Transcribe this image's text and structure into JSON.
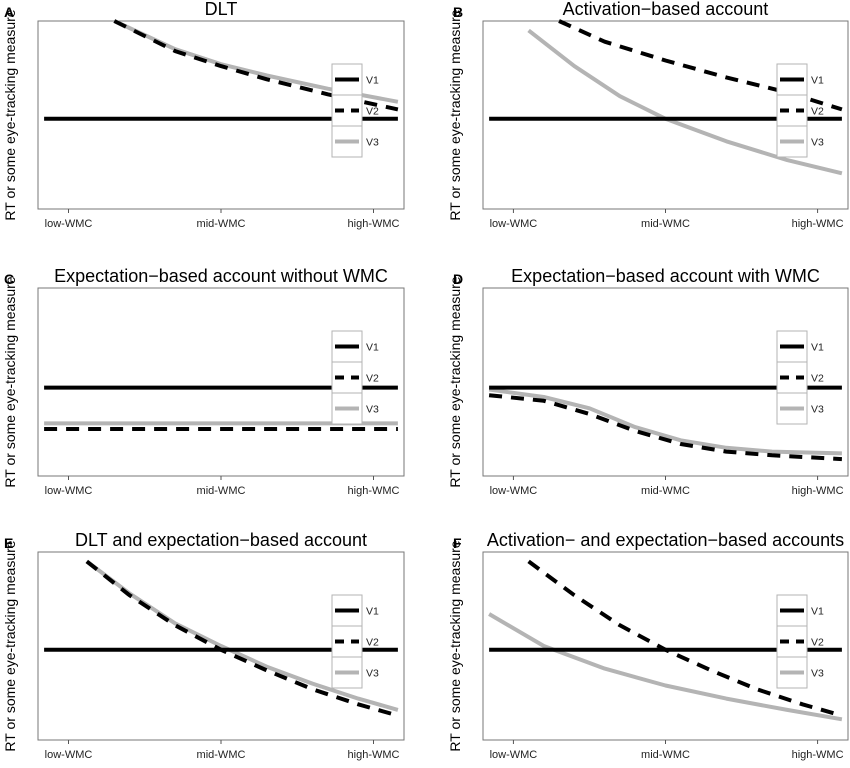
{
  "figure": {
    "ylabel": "RT or some eye-tracking measure",
    "x_tick_labels": [
      "low-WMC",
      "mid-WMC",
      "high-WMC"
    ],
    "legend": [
      "V1",
      "V2",
      "V3"
    ],
    "series_colors": {
      "V1": "#000000",
      "V2": "#000000",
      "V3": "#b4b4b4"
    },
    "series_styles": {
      "V1": "solid",
      "V2": "dashed",
      "V3": "solid"
    }
  },
  "chart_data": [
    {
      "panel": "A",
      "title": "DLT",
      "type": "line",
      "xlabel": "",
      "ylabel": "RT or some eye-tracking measure",
      "x_ticks": [
        0,
        0.5,
        1
      ],
      "x_tick_labels": [
        "low-WMC",
        "mid-WMC",
        "high-WMC"
      ],
      "xlim": [
        -0.1,
        1.1
      ],
      "ylim": [
        0,
        1
      ],
      "series": [
        {
          "name": "V1",
          "x": [
            -0.08,
            1.08
          ],
          "values": [
            0.48,
            0.48
          ]
        },
        {
          "name": "V2",
          "x": [
            0.15,
            0.35,
            0.5,
            0.65,
            0.85,
            1.08
          ],
          "values": [
            1.0,
            0.84,
            0.76,
            0.69,
            0.61,
            0.53
          ]
        },
        {
          "name": "V3",
          "x": [
            0.15,
            0.35,
            0.5,
            0.65,
            0.85,
            1.08
          ],
          "values": [
            1.0,
            0.85,
            0.77,
            0.71,
            0.64,
            0.57
          ]
        }
      ]
    },
    {
      "panel": "B",
      "title": "Activation−based account",
      "type": "line",
      "xlabel": "",
      "ylabel": "RT or some eye-tracking measure",
      "x_ticks": [
        0,
        0.5,
        1
      ],
      "x_tick_labels": [
        "low-WMC",
        "mid-WMC",
        "high-WMC"
      ],
      "xlim": [
        -0.1,
        1.1
      ],
      "ylim": [
        0,
        1
      ],
      "series": [
        {
          "name": "V1",
          "x": [
            -0.08,
            1.08
          ],
          "values": [
            0.48,
            0.48
          ]
        },
        {
          "name": "V2",
          "x": [
            0.15,
            0.3,
            0.5,
            0.7,
            0.9,
            1.08
          ],
          "values": [
            1.0,
            0.89,
            0.79,
            0.7,
            0.62,
            0.53
          ]
        },
        {
          "name": "V3",
          "x": [
            0.05,
            0.2,
            0.35,
            0.5,
            0.7,
            0.9,
            1.08
          ],
          "values": [
            0.95,
            0.76,
            0.6,
            0.48,
            0.36,
            0.26,
            0.19
          ]
        }
      ]
    },
    {
      "panel": "C",
      "title": "Expectation−based account without WMC",
      "type": "line",
      "xlabel": "",
      "ylabel": "RT or some eye-tracking measure",
      "x_ticks": [
        0,
        0.5,
        1
      ],
      "x_tick_labels": [
        "low-WMC",
        "mid-WMC",
        "high-WMC"
      ],
      "xlim": [
        -0.1,
        1.1
      ],
      "ylim": [
        0,
        1
      ],
      "series": [
        {
          "name": "V1",
          "x": [
            -0.08,
            1.08
          ],
          "values": [
            0.47,
            0.47
          ]
        },
        {
          "name": "V2",
          "x": [
            -0.08,
            1.08
          ],
          "values": [
            0.25,
            0.25
          ]
        },
        {
          "name": "V3",
          "x": [
            -0.08,
            1.08
          ],
          "values": [
            0.28,
            0.28
          ]
        }
      ]
    },
    {
      "panel": "D",
      "title": "Expectation−based account with WMC",
      "type": "line",
      "xlabel": "",
      "ylabel": "RT or some eye-tracking measure",
      "x_ticks": [
        0,
        0.5,
        1
      ],
      "x_tick_labels": [
        "low-WMC",
        "mid-WMC",
        "high-WMC"
      ],
      "xlim": [
        -0.1,
        1.1
      ],
      "ylim": [
        0,
        1
      ],
      "series": [
        {
          "name": "V1",
          "x": [
            -0.08,
            1.08
          ],
          "values": [
            0.47,
            0.47
          ]
        },
        {
          "name": "V2",
          "x": [
            -0.08,
            0.1,
            0.25,
            0.4,
            0.55,
            0.7,
            0.85,
            1.08
          ],
          "values": [
            0.43,
            0.4,
            0.33,
            0.24,
            0.17,
            0.13,
            0.11,
            0.09
          ]
        },
        {
          "name": "V3",
          "x": [
            -0.08,
            0.1,
            0.25,
            0.4,
            0.55,
            0.7,
            0.85,
            1.08
          ],
          "values": [
            0.46,
            0.42,
            0.36,
            0.26,
            0.19,
            0.15,
            0.13,
            0.12
          ]
        }
      ]
    },
    {
      "panel": "E",
      "title": "DLT and expectation−based account",
      "type": "line",
      "xlabel": "",
      "ylabel": "RT or some eye-tracking measure",
      "x_ticks": [
        0,
        0.5,
        1
      ],
      "x_tick_labels": [
        "low-WMC",
        "mid-WMC",
        "high-WMC"
      ],
      "xlim": [
        -0.1,
        1.1
      ],
      "ylim": [
        0,
        1
      ],
      "series": [
        {
          "name": "V1",
          "x": [
            -0.08,
            1.08
          ],
          "values": [
            0.48,
            0.48
          ]
        },
        {
          "name": "V2",
          "x": [
            0.06,
            0.2,
            0.35,
            0.5,
            0.65,
            0.8,
            0.95,
            1.08
          ],
          "values": [
            0.95,
            0.77,
            0.61,
            0.48,
            0.37,
            0.27,
            0.19,
            0.13
          ]
        },
        {
          "name": "V3",
          "x": [
            0.06,
            0.2,
            0.35,
            0.5,
            0.65,
            0.8,
            0.95,
            1.08
          ],
          "values": [
            0.95,
            0.78,
            0.62,
            0.5,
            0.39,
            0.3,
            0.22,
            0.16
          ]
        }
      ]
    },
    {
      "panel": "F",
      "title": "Activation− and expectation−based accounts",
      "type": "line",
      "xlabel": "",
      "ylabel": "RT or some eye-tracking measure",
      "x_ticks": [
        0,
        0.5,
        1
      ],
      "x_tick_labels": [
        "low-WMC",
        "mid-WMC",
        "high-WMC"
      ],
      "xlim": [
        -0.1,
        1.1
      ],
      "ylim": [
        0,
        1
      ],
      "series": [
        {
          "name": "V1",
          "x": [
            -0.08,
            1.08
          ],
          "values": [
            0.48,
            0.48
          ]
        },
        {
          "name": "V2",
          "x": [
            0.05,
            0.2,
            0.35,
            0.5,
            0.65,
            0.8,
            0.95,
            1.08
          ],
          "values": [
            0.95,
            0.77,
            0.61,
            0.48,
            0.37,
            0.27,
            0.19,
            0.13
          ]
        },
        {
          "name": "V3",
          "x": [
            -0.08,
            0.1,
            0.3,
            0.5,
            0.7,
            0.9,
            1.08
          ],
          "values": [
            0.67,
            0.5,
            0.38,
            0.29,
            0.22,
            0.16,
            0.11
          ]
        }
      ]
    }
  ]
}
